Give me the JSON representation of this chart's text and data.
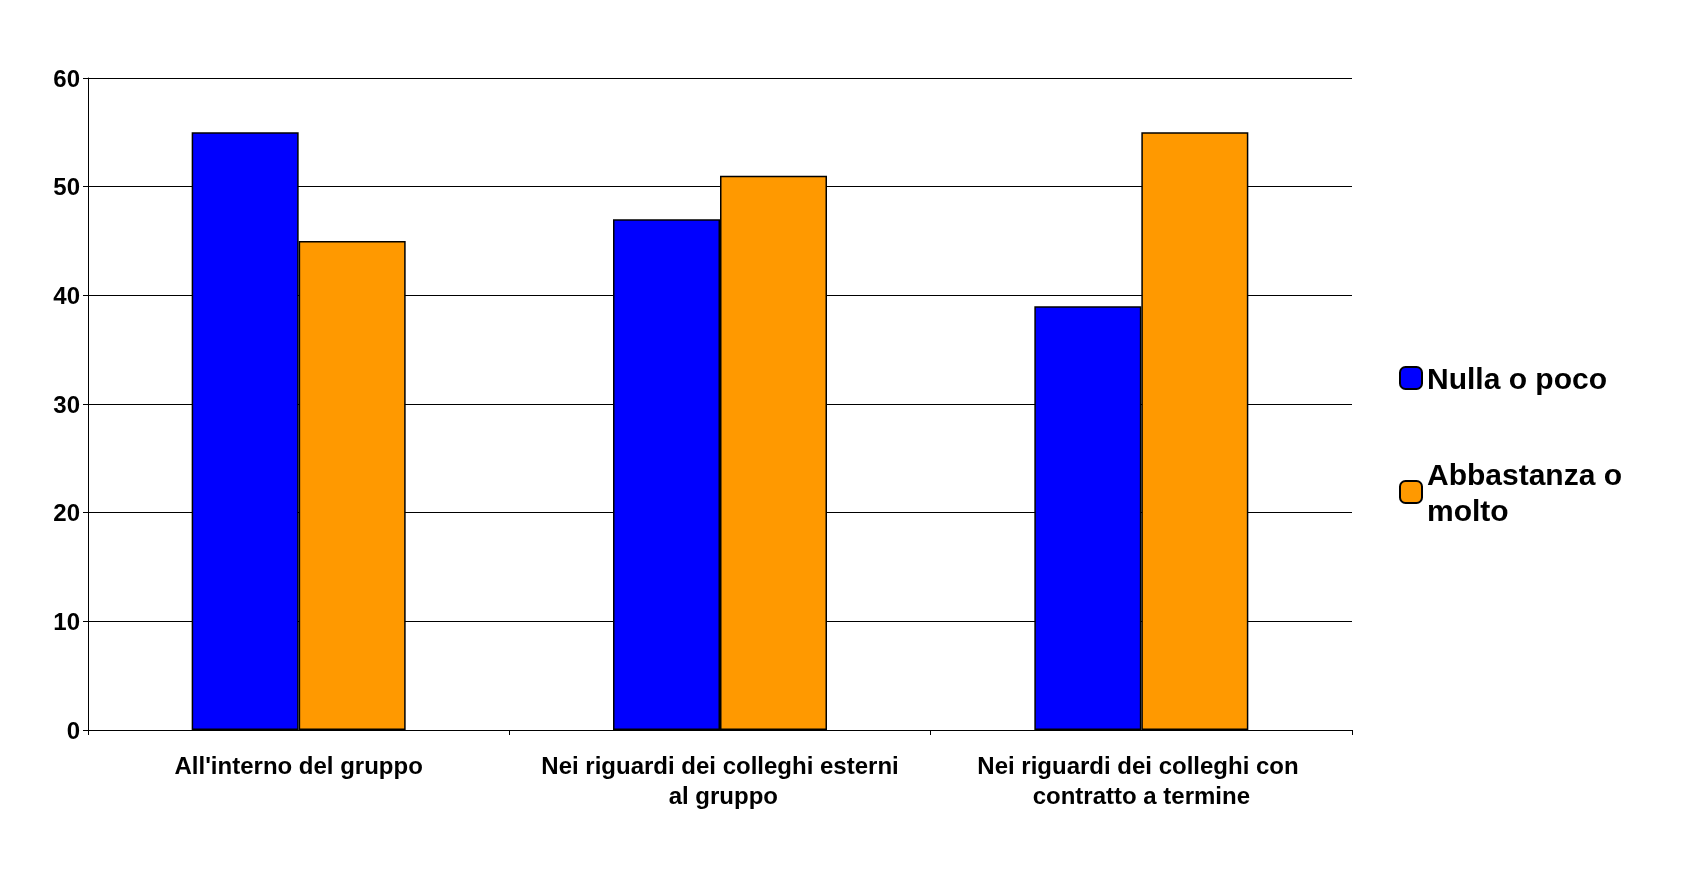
{
  "chart_data": {
    "type": "bar",
    "categories": [
      "All'interno del gruppo",
      "Nei riguardi dei colleghi esterni al gruppo",
      "Nei riguardi dei colleghi con contratto a termine"
    ],
    "series": [
      {
        "name": "Nulla o poco",
        "color": "#0000ff",
        "values": [
          55,
          47,
          39
        ]
      },
      {
        "name": "Abbastanza o molto",
        "color": "#ff9900",
        "values": [
          45,
          51,
          55
        ]
      }
    ],
    "ylim": [
      0,
      60
    ],
    "yticks": [
      0,
      10,
      20,
      30,
      40,
      50,
      60
    ],
    "grid": "y",
    "legend": "right"
  }
}
